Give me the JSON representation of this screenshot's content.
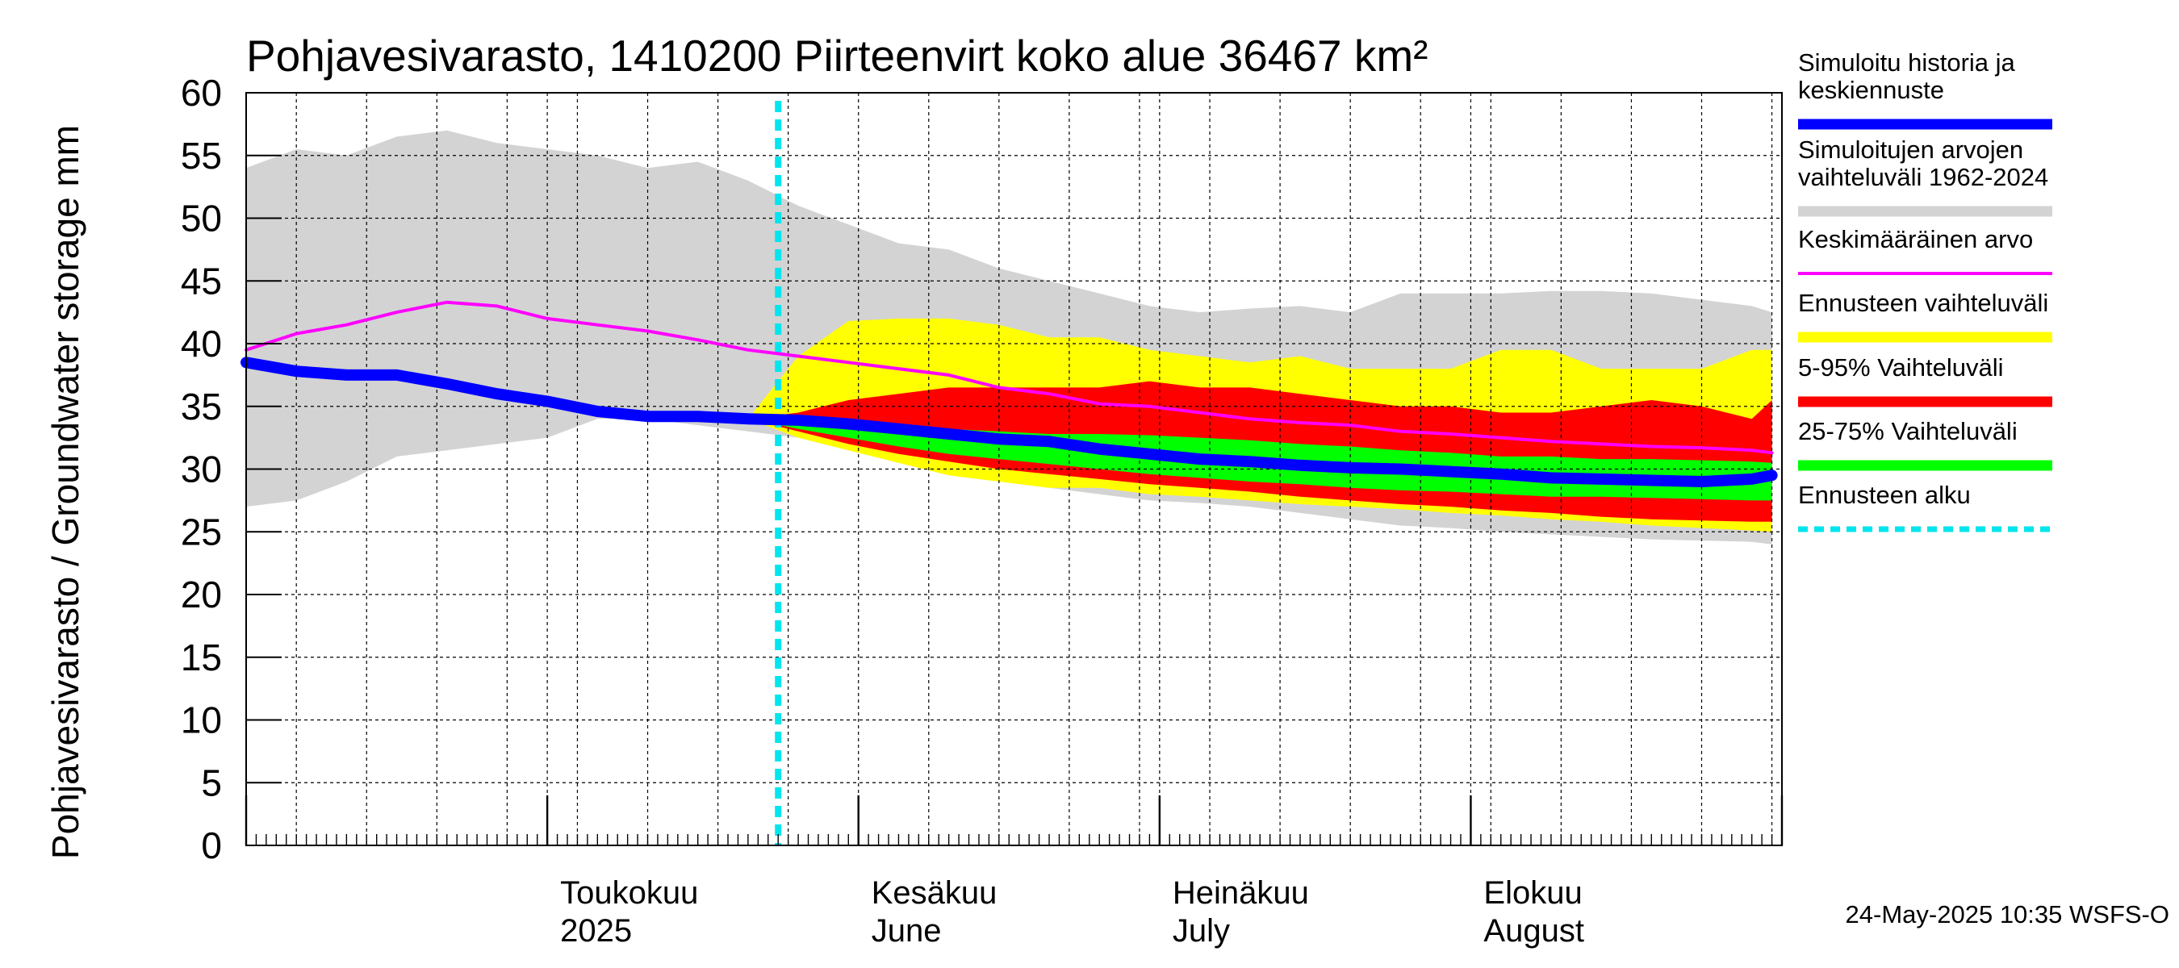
{
  "chart_data": {
    "type": "area",
    "title": "Pohjavesivarasto, 1410200 Piirteenvirt koko alue 36467 km²",
    "ylabel": "Pohjavesivarasto / Groundwater storage   mm",
    "ylim": [
      0,
      60
    ],
    "yticks": [
      "0",
      "5",
      "10",
      "15",
      "20",
      "25",
      "30",
      "35",
      "40",
      "45",
      "50",
      "55",
      "60"
    ],
    "x_start": "2025-04-01",
    "x_end": "2025-08-31",
    "forecast_start": "2025-05-24",
    "x_month_labels": [
      {
        "date": "2025-05-01",
        "fi": "Toukokuu",
        "en": "2025"
      },
      {
        "date": "2025-06-01",
        "fi": "Kesäkuu",
        "en": "June"
      },
      {
        "date": "2025-07-01",
        "fi": "Heinäkuu",
        "en": "July"
      },
      {
        "date": "2025-08-01",
        "fi": "Elokuu",
        "en": "August"
      }
    ],
    "x_days": [
      0,
      5,
      10,
      15,
      20,
      25,
      30,
      35,
      40,
      45,
      50,
      55,
      60,
      65,
      70,
      75,
      80,
      85,
      90,
      95,
      100,
      105,
      110,
      115,
      120,
      125,
      130,
      135,
      140,
      145,
      150,
      152
    ],
    "series": [
      {
        "name": "Simuloitujen arvojen vaihteluväli 1962-2024",
        "kind": "band",
        "color": "#d3d3d3",
        "upper": [
          54,
          55.5,
          55,
          56.5,
          57,
          56,
          55.5,
          55,
          54,
          54.5,
          53,
          51,
          49.5,
          48,
          47.5,
          46,
          45,
          44,
          43,
          42.5,
          42.8,
          43,
          42.5,
          44,
          44,
          44,
          44.2,
          44.2,
          44,
          43.5,
          43,
          42.5
        ],
        "lower": [
          27,
          27.5,
          29,
          31,
          31.5,
          32,
          32.5,
          34,
          34,
          33.5,
          33,
          32.5,
          31.5,
          30.5,
          29.5,
          29,
          28.5,
          28,
          27.5,
          27.3,
          27,
          26.5,
          26,
          25.5,
          25.3,
          25,
          24.8,
          24.6,
          24.4,
          24.3,
          24.2,
          24
        ]
      },
      {
        "name": "Ennusteen vaihteluväli",
        "kind": "band",
        "color": "#ffff00",
        "upper": [
          null,
          null,
          null,
          null,
          null,
          null,
          null,
          null,
          null,
          null,
          34,
          39,
          41.8,
          42,
          42,
          41.5,
          40.5,
          40.5,
          39.5,
          39,
          38.5,
          39,
          38,
          38,
          38,
          39.5,
          39.5,
          38,
          38,
          38,
          39.5,
          39.5
        ],
        "lower": [
          null,
          null,
          null,
          null,
          null,
          null,
          null,
          null,
          null,
          null,
          34,
          32.5,
          31.5,
          30.5,
          29.5,
          29,
          28.5,
          28.5,
          28,
          27.8,
          27.5,
          27.2,
          27,
          26.8,
          26.5,
          26.3,
          26,
          25.8,
          25.5,
          25.3,
          25.1,
          25
        ]
      },
      {
        "name": "5-95% Vaihteluväli",
        "kind": "band",
        "color": "#ff0000",
        "upper": [
          null,
          null,
          null,
          null,
          null,
          null,
          null,
          null,
          null,
          null,
          34,
          34.5,
          35.5,
          36,
          36.5,
          36.5,
          36.5,
          36.5,
          37,
          36.5,
          36.5,
          36,
          35.5,
          35,
          35,
          34.5,
          34.5,
          35,
          35.5,
          35,
          34,
          35.5
        ],
        "lower": [
          null,
          null,
          null,
          null,
          null,
          null,
          null,
          null,
          null,
          null,
          34,
          33,
          32,
          31.2,
          30.6,
          30,
          29.6,
          29.2,
          28.8,
          28.5,
          28.2,
          27.8,
          27.5,
          27.2,
          27,
          26.7,
          26.5,
          26.2,
          26,
          25.9,
          25.8,
          25.8
        ]
      },
      {
        "name": "25-75% Vaihteluväli",
        "kind": "band",
        "color": "#00ff00",
        "upper": [
          null,
          null,
          null,
          null,
          null,
          null,
          null,
          null,
          null,
          null,
          34,
          34,
          33.8,
          33.5,
          33.2,
          33,
          32.8,
          32.8,
          32.7,
          32.5,
          32.3,
          32,
          31.8,
          31.5,
          31.3,
          31,
          31,
          30.8,
          30.8,
          30.7,
          30.6,
          30.5
        ],
        "lower": [
          null,
          null,
          null,
          null,
          null,
          null,
          null,
          null,
          null,
          null,
          34,
          33.2,
          32.5,
          31.8,
          31.2,
          30.8,
          30.4,
          30,
          29.6,
          29.3,
          29,
          28.8,
          28.5,
          28.3,
          28.2,
          28,
          27.8,
          27.8,
          27.7,
          27.6,
          27.5,
          27.5
        ]
      },
      {
        "name": "Keskimääräinen arvo",
        "kind": "line",
        "color": "#ff00ff",
        "values": [
          39.5,
          40.8,
          41.5,
          42.5,
          43.3,
          43,
          42,
          41.5,
          41,
          40.3,
          39.5,
          39,
          38.5,
          38,
          37.5,
          36.5,
          36,
          35.2,
          35,
          34.5,
          34,
          33.7,
          33.5,
          33,
          32.8,
          32.5,
          32.2,
          32,
          31.8,
          31.7,
          31.5,
          31.3
        ]
      },
      {
        "name": "Simuloitu historia ja keskiennuste",
        "kind": "line",
        "color": "#0000ff",
        "values": [
          38.5,
          37.8,
          37.5,
          37.5,
          36.8,
          36,
          35.4,
          34.6,
          34.2,
          34.2,
          34,
          33.9,
          33.6,
          33.2,
          32.8,
          32.4,
          32.2,
          31.6,
          31.2,
          30.8,
          30.6,
          30.3,
          30.1,
          30,
          29.8,
          29.6,
          29.3,
          29.2,
          29.1,
          29,
          29.2,
          29.5
        ]
      }
    ],
    "legend": [
      {
        "label": "Simuloitu historia ja keskiennuste",
        "color": "#0000ff",
        "style": "thick"
      },
      {
        "label": "Simuloitujen arvojen vaihteluväli 1962-2024",
        "color": "#d3d3d3",
        "style": "thick"
      },
      {
        "label": "Keskimääräinen arvo",
        "color": "#ff00ff",
        "style": "thin"
      },
      {
        "label": "Ennusteen vaihteluväli",
        "color": "#ffff00",
        "style": "thick"
      },
      {
        "label": "5-95% Vaihteluväli",
        "color": "#ff0000",
        "style": "thick"
      },
      {
        "label": "25-75% Vaihteluväli",
        "color": "#00ff00",
        "style": "thick"
      },
      {
        "label": "Ennusteen alku",
        "color": "#00e5ee",
        "style": "dashed"
      }
    ],
    "legend_placement": "right",
    "grid": true
  },
  "legend_lines": {
    "blue": [
      "Simuloitu historia ja",
      "keskiennuste"
    ],
    "grey": [
      "Simuloitujen arvojen",
      "vaihteluväli 1962-2024"
    ],
    "magenta": [
      "Keskimääräinen arvo"
    ],
    "yellow": [
      "Ennusteen vaihteluväli"
    ],
    "red": [
      "5-95% Vaihteluväli"
    ],
    "green": [
      "25-75% Vaihteluväli"
    ],
    "cyan": [
      "Ennusteen alku"
    ]
  },
  "footer": "24-May-2025 10:35 WSFS-O"
}
